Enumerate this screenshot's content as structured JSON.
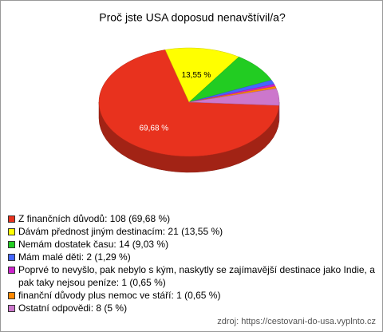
{
  "chart_data": {
    "type": "pie",
    "title": "Proč jste USA doposud nenavštívil/a?",
    "categories": [
      "Z finančních důvodů: 108 (69,68 %)",
      "Dávám přednost jiným destinacím: 21 (13,55 %)",
      "Nemám dostatek času: 14 (9,03 %)",
      "Mám malé děti: 2 (1,29 %)",
      "Poprvé to nevyšlo, pak nebylo s kým, naskytly se zajímavější destinace jako Indie, a pak taky nejsou peníze: 1 (0,65 %)",
      "finanční důvody plus nemoc ve stáří: 1 (0,65 %)",
      "Ostatní odpovědi: 8 (5 %)"
    ],
    "values": [
      69.68,
      13.55,
      9.03,
      1.29,
      0.65,
      0.65,
      5
    ],
    "value_labels": [
      "69,68 %",
      "13,55 %",
      null,
      null,
      null,
      null,
      null
    ],
    "colors": [
      "#e8321e",
      "#ffff00",
      "#22cc22",
      "#4466ff",
      "#cc22cc",
      "#ff8800",
      "#cc77cc"
    ],
    "source": "zdroj: https://cestovani-do-usa.vyplnto.cz"
  }
}
